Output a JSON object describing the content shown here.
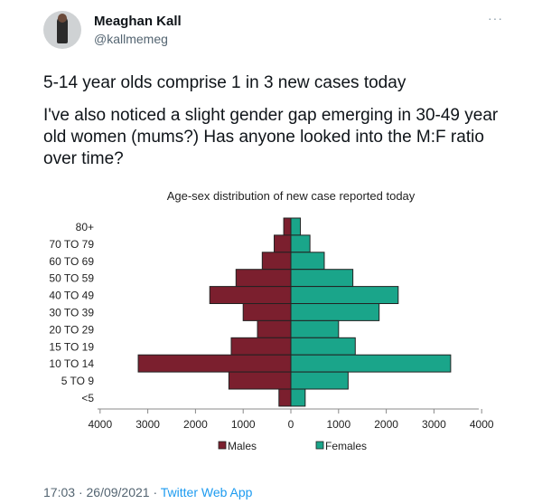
{
  "tweet": {
    "author_name": "Meaghan Kall",
    "handle": "@kallmemeg",
    "more_label": "···",
    "line1": "5-14 year olds comprise 1 in 3 new cases today",
    "line2": "I've also noticed a slight gender gap emerging in 30-49 year old women (mums?) Has anyone looked into the M:F ratio over time?",
    "time": "17:03",
    "sep1": "·",
    "date": "26/09/2021",
    "sep2": "·",
    "app": "Twitter Web App"
  },
  "chart_data": {
    "type": "bar",
    "orientation": "horizontal",
    "title": "Age-sex distribution of new case reported today",
    "categories": [
      "80+",
      "70 TO 79",
      "60 TO 69",
      "50 TO 59",
      "40 TO 49",
      "30 TO 39",
      "20 TO 29",
      "15 TO 19",
      "10 TO 14",
      "5 TO 9",
      "<5"
    ],
    "series": [
      {
        "name": "Males",
        "color": "#7b1f2e",
        "values": [
          150,
          350,
          600,
          1150,
          1700,
          1000,
          700,
          1250,
          3200,
          1300,
          250
        ]
      },
      {
        "name": "Females",
        "color": "#1aa58a",
        "values": [
          200,
          400,
          700,
          1300,
          2250,
          1850,
          1000,
          1350,
          3350,
          1200,
          300
        ]
      }
    ],
    "xlim": [
      -4000,
      4000
    ],
    "xticks": [
      -4000,
      -3000,
      -2000,
      -1000,
      0,
      1000,
      2000,
      3000,
      4000
    ],
    "xtick_labels": [
      "4000",
      "3000",
      "2000",
      "1000",
      "0",
      "1000",
      "2000",
      "3000",
      "4000"
    ],
    "legend_placement": "bottom",
    "grid": false
  }
}
